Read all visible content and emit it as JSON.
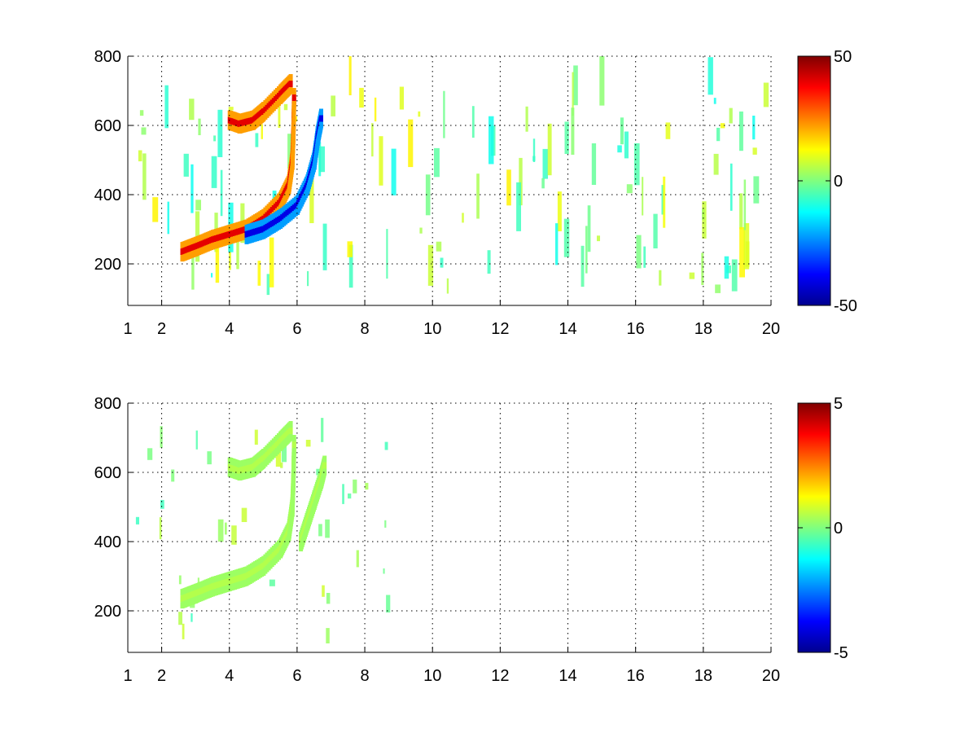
{
  "chart_data": [
    {
      "type": "heatmap",
      "title": "",
      "xlabel": "",
      "ylabel": "",
      "xlim": [
        1,
        20
      ],
      "ylim": [
        80,
        800
      ],
      "xticks": [
        1,
        2,
        4,
        6,
        8,
        10,
        12,
        14,
        16,
        18,
        20
      ],
      "xtick_labels": [
        "1",
        "2",
        "4",
        "6",
        "8",
        "10",
        "12",
        "14",
        "16",
        "18",
        "20"
      ],
      "yticks": [
        200,
        400,
        600,
        800
      ],
      "ytick_labels": [
        "200",
        "400",
        "600",
        "800"
      ],
      "grid": true,
      "colormap": "jet",
      "clim": [
        -50,
        50
      ],
      "colorbar_ticks": [
        -50,
        0,
        50
      ],
      "colorbar_labels": [
        "-50",
        "0",
        "50"
      ],
      "ridges": [
        {
          "points": [
            [
              2.6,
              235
            ],
            [
              3.0,
              250
            ],
            [
              3.5,
              270
            ],
            [
              4.0,
              285
            ],
            [
              4.5,
              300
            ],
            [
              5.0,
              330
            ],
            [
              5.5,
              380
            ],
            [
              5.75,
              430
            ],
            [
              5.85,
              500
            ],
            [
              5.88,
              580
            ],
            [
              5.9,
              680
            ]
          ],
          "value": 40
        },
        {
          "points": [
            [
              4.0,
              615
            ],
            [
              4.3,
              605
            ],
            [
              4.7,
              615
            ],
            [
              5.0,
              640
            ],
            [
              5.5,
              690
            ],
            [
              5.8,
              720
            ]
          ],
          "value": 40
        },
        {
          "points": [
            [
              4.5,
              285
            ],
            [
              5.0,
              300
            ],
            [
              5.5,
              330
            ],
            [
              6.0,
              370
            ],
            [
              6.3,
              430
            ],
            [
              6.5,
              500
            ],
            [
              6.6,
              570
            ],
            [
              6.7,
              620
            ]
          ],
          "value": -40
        }
      ]
    },
    {
      "type": "heatmap",
      "title": "",
      "xlabel": "",
      "ylabel": "",
      "xlim": [
        1,
        20
      ],
      "ylim": [
        80,
        800
      ],
      "xticks": [
        1,
        2,
        4,
        6,
        8,
        10,
        12,
        14,
        16,
        18,
        20
      ],
      "xtick_labels": [
        "1",
        "2",
        "4",
        "6",
        "8",
        "10",
        "12",
        "14",
        "16",
        "18",
        "20"
      ],
      "yticks": [
        200,
        400,
        600,
        800
      ],
      "ytick_labels": [
        "200",
        "400",
        "600",
        "800"
      ],
      "grid": true,
      "colormap": "jet",
      "clim": [
        -5,
        5
      ],
      "colorbar_ticks": [
        -5,
        0,
        5
      ],
      "colorbar_labels": [
        "-5",
        "0",
        "5"
      ],
      "ridges": [
        {
          "points": [
            [
              2.6,
              235
            ],
            [
              3.0,
              250
            ],
            [
              3.5,
              270
            ],
            [
              4.0,
              285
            ],
            [
              4.5,
              300
            ],
            [
              5.0,
              330
            ],
            [
              5.5,
              380
            ],
            [
              5.75,
              430
            ],
            [
              5.85,
              500
            ],
            [
              5.88,
              580
            ],
            [
              5.9,
              680
            ]
          ],
          "value": 0.5
        },
        {
          "points": [
            [
              4.0,
              615
            ],
            [
              4.3,
              605
            ],
            [
              4.7,
              615
            ],
            [
              5.0,
              640
            ],
            [
              5.5,
              690
            ],
            [
              5.8,
              720
            ]
          ],
          "value": 0.5
        },
        {
          "points": [
            [
              6.1,
              400
            ],
            [
              6.3,
              460
            ],
            [
              6.5,
              520
            ],
            [
              6.7,
              580
            ],
            [
              6.8,
              620
            ]
          ],
          "value": 0.5
        }
      ]
    }
  ]
}
